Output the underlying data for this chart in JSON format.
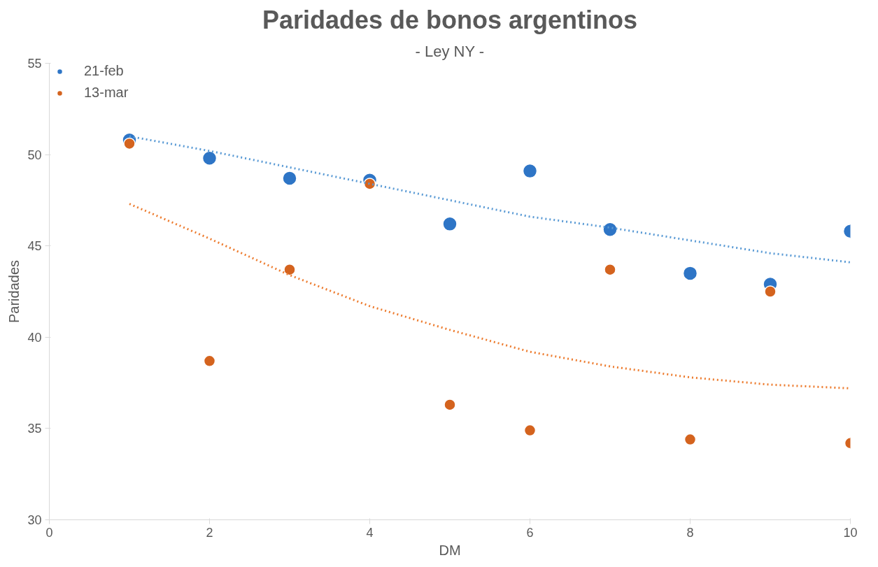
{
  "chart_data": {
    "type": "scatter",
    "title": "Paridades de bonos argentinos",
    "subtitle": "- Ley NY -",
    "xlabel": "DM",
    "ylabel": "Paridades",
    "x": [
      1,
      2,
      3,
      4,
      5,
      6,
      7,
      8,
      9,
      10
    ],
    "series": [
      {
        "name": "21-feb",
        "color": "#2e75c6",
        "values": [
          50.8,
          49.8,
          48.7,
          48.6,
          46.2,
          49.1,
          45.9,
          43.5,
          42.9,
          45.8
        ]
      },
      {
        "name": "13-mar",
        "color": "#d4631e",
        "values": [
          50.6,
          38.7,
          43.7,
          48.4,
          36.3,
          34.9,
          43.7,
          34.4,
          42.5,
          34.2
        ]
      },
      {
        "type": "line",
        "color": "#5b9bd5",
        "line_style": "dotted",
        "marker": "none",
        "values": [
          51.0,
          50.2,
          49.3,
          48.4,
          47.5,
          46.6,
          46.0,
          45.3,
          44.6,
          44.1
        ]
      },
      {
        "type": "line",
        "color": "#ed7d31",
        "line_style": "dotted",
        "marker": "none",
        "values": [
          47.3,
          45.4,
          43.4,
          41.7,
          40.4,
          39.2,
          38.4,
          37.8,
          37.4,
          37.2
        ]
      }
    ],
    "marker": "circle",
    "xlim": [
      0,
      10
    ],
    "ylim": [
      30,
      55
    ],
    "xticks": [
      0,
      2,
      4,
      6,
      8,
      10
    ],
    "yticks": [
      30,
      35,
      40,
      45,
      50,
      55
    ],
    "grid": false,
    "legend": "top left"
  }
}
